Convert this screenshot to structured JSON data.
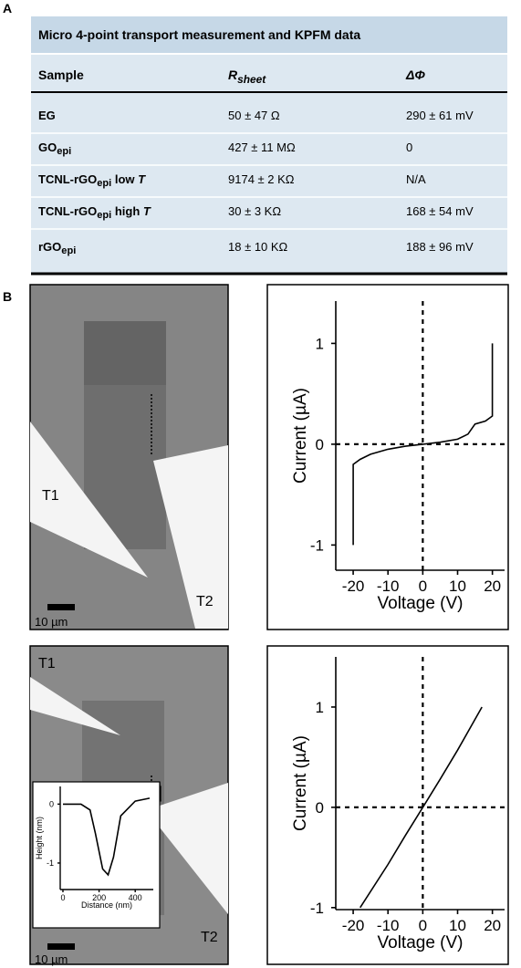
{
  "panel_labels": [
    "A",
    "B"
  ],
  "table": {
    "title": "Micro 4-point transport measurement and KPFM data",
    "header": [
      [
        {
          "text": "Sample"
        }
      ],
      [
        {
          "text": "R",
          "style": "italic"
        },
        {
          "text": "sheet",
          "style": "italic-sub"
        }
      ],
      [
        {
          "text": "ΔΦ",
          "style": "italic"
        }
      ]
    ],
    "rows": [
      [
        [
          {
            "text": "EG"
          }
        ],
        [
          {
            "text": "50 ± 47 Ω"
          }
        ],
        [
          {
            "text": "290 ± 61 mV"
          }
        ]
      ],
      [
        [
          {
            "text": "GO"
          },
          {
            "text": "epi",
            "style": "sub"
          }
        ],
        [
          {
            "text": "427 ± 11 MΩ"
          }
        ],
        [
          {
            "text": "0"
          }
        ]
      ],
      [
        [
          {
            "text": "TCNL-rGO"
          },
          {
            "text": "epi",
            "style": "sub"
          },
          {
            "text": " low "
          },
          {
            "text": "T",
            "style": "italic"
          }
        ],
        [
          {
            "text": "9174 ± 2 KΩ"
          }
        ],
        [
          {
            "text": "N/A"
          }
        ]
      ],
      [
        [
          {
            "text": "TCNL-rGO"
          },
          {
            "text": "epi",
            "style": "sub"
          },
          {
            "text": " high "
          },
          {
            "text": "T",
            "style": "italic"
          }
        ],
        [
          {
            "text": "30 ± 3 KΩ"
          }
        ],
        [
          {
            "text": "168 ± 54 mV"
          }
        ]
      ],
      [
        [
          {
            "text": "rGO"
          },
          {
            "text": "epi",
            "style": "sub"
          }
        ],
        [
          {
            "text": "18 ± 10 KΩ"
          }
        ],
        [
          {
            "text": "188 ± 96 mV"
          }
        ]
      ]
    ]
  },
  "images": [
    {
      "labels": [
        "T1",
        "T2"
      ],
      "scale_bar": "10 µm"
    },
    {
      "labels": [
        "T1",
        "T2"
      ],
      "scale_bar": "10 µm"
    }
  ],
  "chart_data": [
    {
      "type": "line",
      "xlabel": "Voltage (V)",
      "ylabel": "Current (µA)",
      "x": [
        -20,
        -20,
        -18,
        -15,
        -10,
        -5,
        0,
        5,
        10,
        13,
        15,
        18,
        20,
        20
      ],
      "values": [
        -1,
        -0.2,
        -0.15,
        -0.1,
        -0.05,
        -0.02,
        0,
        0.02,
        0.05,
        0.1,
        0.2,
        0.23,
        0.28,
        1
      ],
      "color": "#000000",
      "xlim": [
        -25,
        23.5
      ],
      "ylim": [
        -1.25,
        1.42
      ],
      "xticks": [
        -20,
        -10,
        0,
        10,
        20
      ],
      "yticks": [
        -1,
        0,
        1
      ],
      "zero_lines": true
    },
    {
      "type": "line",
      "xlabel": "Voltage (V)",
      "ylabel": "Current (µA)",
      "x": [
        -18,
        -10,
        -5,
        0,
        5,
        10,
        17
      ],
      "values": [
        -1,
        -0.57,
        -0.28,
        0,
        0.28,
        0.57,
        1
      ],
      "color": "#000000",
      "xlim": [
        -25,
        23.5
      ],
      "ylim": [
        -1.02,
        1.5
      ],
      "xticks": [
        -20,
        -10,
        0,
        10,
        20
      ],
      "yticks": [
        -1,
        0,
        1
      ],
      "zero_lines": true
    },
    {
      "type": "line",
      "xlabel": "Distance (nm)",
      "ylabel": "Height (nm)",
      "x": [
        0,
        100,
        150,
        180,
        220,
        250,
        280,
        320,
        400,
        480
      ],
      "values": [
        0,
        0,
        -0.1,
        -0.5,
        -1.1,
        -1.2,
        -0.9,
        -0.2,
        0.05,
        0.1
      ],
      "color": "#000000",
      "xlim": [
        -15,
        500
      ],
      "ylim": [
        -1.45,
        0.3
      ],
      "xticks": [
        0,
        200,
        400
      ],
      "yticks": [
        -1,
        0
      ],
      "zero_lines": false
    }
  ]
}
